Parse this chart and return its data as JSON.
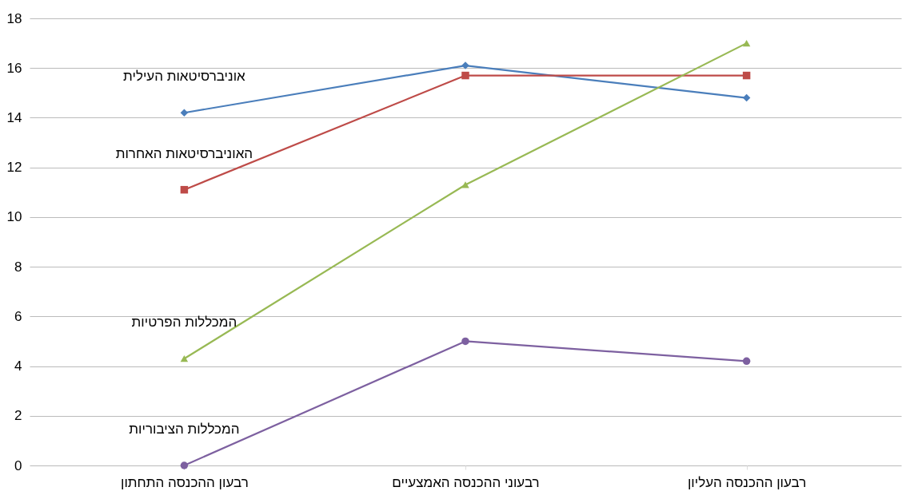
{
  "chart_data": {
    "type": "line",
    "categories": [
      "רבעון ההכנסה התחתון",
      "רבעוני ההכנסה האמצעיים",
      "רבעון ההכנסה העליון"
    ],
    "series": [
      {
        "name": "אוניברסיטאות העילית",
        "color": "#4a7ebb",
        "marker": "diamond",
        "values": [
          14.2,
          16.1,
          14.8
        ]
      },
      {
        "name": "האוניברסיטאות האחרות",
        "color": "#be4b48",
        "marker": "square",
        "values": [
          11.1,
          15.7,
          15.7
        ]
      },
      {
        "name": "המכללות הפרטיות",
        "color": "#98b954",
        "marker": "triangle",
        "values": [
          4.3,
          11.3,
          17.0
        ]
      },
      {
        "name": "המכללות הציבוריות",
        "color": "#7d60a0",
        "marker": "circle",
        "values": [
          0,
          5.0,
          4.2
        ]
      }
    ],
    "ylim": [
      0,
      18
    ],
    "yticks": [
      0,
      2,
      4,
      6,
      8,
      10,
      12,
      14,
      16,
      18
    ],
    "grid": "y",
    "legend": false,
    "line_style": "solid"
  }
}
